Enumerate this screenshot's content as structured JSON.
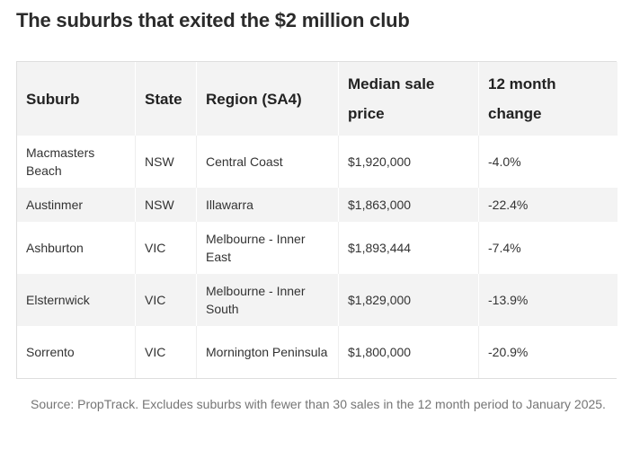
{
  "title": "The suburbs that exited the $2 million club",
  "table": {
    "headers": [
      "Suburb",
      "State",
      "Region (SA4)",
      "Median sale price",
      "12 month change"
    ],
    "rows": [
      [
        "Macmasters Beach",
        "NSW",
        "Central Coast",
        "$1,920,000",
        "-4.0%"
      ],
      [
        "Austinmer",
        "NSW",
        "Illawarra",
        "$1,863,000",
        "-22.4%"
      ],
      [
        "Ashburton",
        "VIC",
        "Melbourne - Inner East",
        "$1,893,444",
        "-7.4%"
      ],
      [
        "Elsternwick",
        "VIC",
        "Melbourne - Inner South",
        "$1,829,000",
        "-13.9%"
      ],
      [
        "Sorrento",
        "VIC",
        "Mornington Peninsula",
        "$1,800,000",
        "-20.9%"
      ]
    ]
  },
  "source": "Source: PropTrack. Excludes suburbs with fewer than 30 sales in the 12 month period to January 2025."
}
